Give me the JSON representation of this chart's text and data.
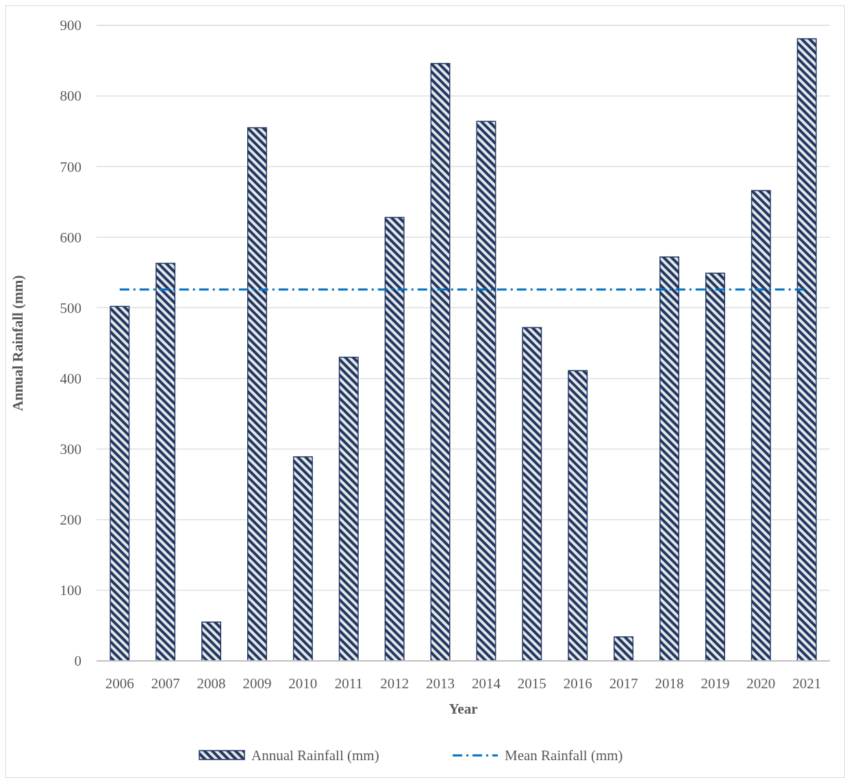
{
  "chart_data": {
    "type": "bar",
    "xlabel": "Year",
    "ylabel": "Annual Rainfall (mm)",
    "categories": [
      "2006",
      "2007",
      "2008",
      "2009",
      "2010",
      "2011",
      "2012",
      "2013",
      "2014",
      "2015",
      "2016",
      "2017",
      "2018",
      "2019",
      "2020",
      "2021"
    ],
    "series": [
      {
        "name": "Annual Rainfall (mm)",
        "color": "#1f3864",
        "values": [
          502,
          563,
          55,
          755,
          289,
          430,
          628,
          846,
          764,
          472,
          411,
          34,
          572,
          549,
          666,
          881
        ]
      },
      {
        "name": "Mean Rainfall (mm)",
        "type": "line",
        "color": "#0070c0",
        "line_style": "dashed",
        "values": [
          526,
          526,
          526,
          526,
          526,
          526,
          526,
          526,
          526,
          526,
          526,
          526,
          526,
          526,
          526,
          526
        ]
      }
    ],
    "ylim": [
      0,
      900
    ],
    "yticks": [
      0,
      100,
      200,
      300,
      400,
      500,
      600,
      700,
      800,
      900
    ],
    "grid": "y",
    "legend": "bottom"
  }
}
